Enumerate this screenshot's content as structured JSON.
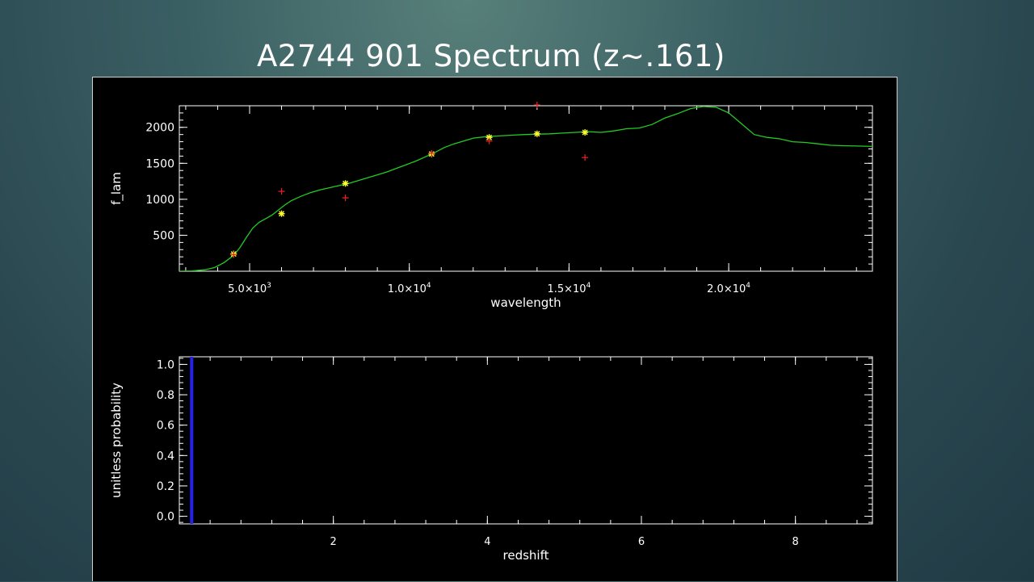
{
  "slide": {
    "title": "A2744 901 Spectrum (z~.161)"
  },
  "chart_data": [
    {
      "type": "line",
      "xlabel": "wavelength",
      "ylabel": "f_lam",
      "xlim": [
        2800,
        24500
      ],
      "ylim": [
        0,
        2300
      ],
      "xticks": [
        {
          "value": 5000,
          "mant": "5.0×10",
          "exp": "3"
        },
        {
          "value": 10000,
          "mant": "1.0×10",
          "exp": "4"
        },
        {
          "value": 15000,
          "mant": "1.5×10",
          "exp": "4"
        },
        {
          "value": 20000,
          "mant": "2.0×10",
          "exp": "4"
        }
      ],
      "yticks": [
        {
          "value": 500,
          "label": "500"
        },
        {
          "value": 1000,
          "label": "1000"
        },
        {
          "value": 1500,
          "label": "1500"
        },
        {
          "value": 2000,
          "label": "2000"
        }
      ],
      "series": [
        {
          "kind": "line",
          "color": "#22cc22",
          "x": [
            2800,
            3200,
            3600,
            3900,
            4200,
            4500,
            4700,
            4900,
            5100,
            5300,
            5500,
            5700,
            5900,
            6100,
            6300,
            6600,
            6900,
            7200,
            7500,
            7800,
            8100,
            8400,
            8700,
            9000,
            9300,
            9600,
            9900,
            10200,
            10500,
            10800,
            11100,
            11400,
            11700,
            12000,
            12400,
            12800,
            13200,
            13600,
            14000,
            14400,
            14800,
            15200,
            15600,
            16000,
            16400,
            16800,
            17200,
            17600,
            18000,
            18400,
            18800,
            19200,
            19600,
            20000,
            20400,
            20800,
            21200,
            21600,
            22000,
            22400,
            22800,
            23200,
            23600,
            24000,
            24500
          ],
          "y": [
            0,
            5,
            20,
            50,
            120,
            220,
            330,
            470,
            600,
            680,
            730,
            780,
            850,
            920,
            980,
            1040,
            1090,
            1130,
            1160,
            1190,
            1220,
            1260,
            1300,
            1340,
            1380,
            1430,
            1480,
            1530,
            1590,
            1650,
            1720,
            1770,
            1810,
            1850,
            1870,
            1880,
            1890,
            1900,
            1905,
            1910,
            1920,
            1930,
            1940,
            1930,
            1950,
            1980,
            1990,
            2040,
            2130,
            2190,
            2260,
            2290,
            2280,
            2200,
            2050,
            1900,
            1860,
            1840,
            1800,
            1790,
            1770,
            1750,
            1745,
            1740,
            1735
          ]
        },
        {
          "kind": "stars",
          "color": "#ffff33",
          "x": [
            4500,
            6000,
            8000,
            10700,
            12500,
            14000,
            15500
          ],
          "y": [
            240,
            800,
            1220,
            1630,
            1860,
            1910,
            1930
          ]
        },
        {
          "kind": "crosses",
          "color": "#dd2222",
          "x": [
            4500,
            6000,
            8000,
            10700,
            12500,
            14000,
            15500
          ],
          "y": [
            230,
            1110,
            1020,
            1640,
            1810,
            2340,
            1580
          ]
        }
      ]
    },
    {
      "type": "bar",
      "xlabel": "redshift",
      "ylabel": "unitless probability",
      "xlim": [
        0,
        9
      ],
      "ylim": [
        -0.05,
        1.05
      ],
      "xticks": [
        {
          "value": 2,
          "label": "2"
        },
        {
          "value": 4,
          "label": "4"
        },
        {
          "value": 6,
          "label": "6"
        },
        {
          "value": 8,
          "label": "8"
        }
      ],
      "yticks": [
        {
          "value": 0.0,
          "label": "0.0"
        },
        {
          "value": 0.2,
          "label": "0.2"
        },
        {
          "value": 0.4,
          "label": "0.4"
        },
        {
          "value": 0.6,
          "label": "0.6"
        },
        {
          "value": 0.8,
          "label": "0.8"
        },
        {
          "value": 1.0,
          "label": "1.0"
        }
      ],
      "series": [
        {
          "kind": "spike",
          "color": "#2222ee",
          "x": [
            0.16
          ],
          "y": [
            1.05
          ]
        }
      ]
    }
  ]
}
